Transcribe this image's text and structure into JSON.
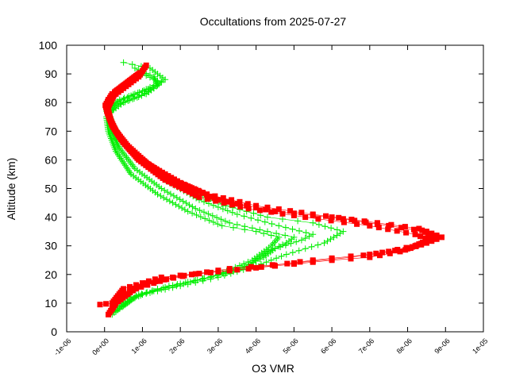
{
  "chart_data": {
    "type": "scatter",
    "title": "Occultations from 2025-07-27",
    "xlabel": "O3 VMR",
    "ylabel": "Altitude (km)",
    "xlim": [
      -1e-06,
      1e-05
    ],
    "ylim": [
      0,
      100
    ],
    "x_tick_labels": [
      "-1e-06",
      "0e+00",
      "1e-06",
      "2e-06",
      "3e-06",
      "4e-06",
      "5e-06",
      "6e-06",
      "7e-06",
      "8e-06",
      "9e-06",
      "1e-05"
    ],
    "x_ticks": [
      -1e-06,
      0,
      1e-06,
      2e-06,
      3e-06,
      4e-06,
      5e-06,
      6e-06,
      7e-06,
      8e-06,
      9e-06,
      1e-05
    ],
    "y_tick_labels": [
      "0",
      "10",
      "20",
      "30",
      "40",
      "50",
      "60",
      "70",
      "80",
      "90",
      "100"
    ],
    "y_ticks": [
      0,
      10,
      20,
      30,
      40,
      50,
      60,
      70,
      80,
      90,
      100
    ],
    "grid": false,
    "legend": "none",
    "series": [
      {
        "marker": "square",
        "color": "#ff0000",
        "profiles": [
          [
            [
              -1.2e-07,
              9.5
            ],
            [
              2e-07,
              10
            ],
            [
              5e-07,
              15
            ],
            [
              1.5e-06,
              19
            ],
            [
              3e-06,
              21
            ],
            [
              4.5e-06,
              23
            ],
            [
              6e-06,
              25
            ],
            [
              7e-06,
              26
            ],
            [
              7.8e-06,
              28
            ],
            [
              8.5e-06,
              31
            ],
            [
              8.9e-06,
              33
            ],
            [
              8.5e-06,
              35
            ],
            [
              7.5e-06,
              37
            ],
            [
              6e-06,
              40
            ],
            [
              4.5e-06,
              42
            ],
            [
              3e-06,
              46
            ],
            [
              2e-06,
              52
            ],
            [
              1.2e-06,
              58
            ],
            [
              7e-07,
              63
            ],
            [
              4e-07,
              68
            ],
            [
              2e-07,
              72
            ],
            [
              6e-08,
              77
            ],
            [
              1e-07,
              81
            ],
            [
              5e-07,
              85
            ],
            [
              9e-07,
              89
            ],
            [
              1.1e-06,
              93
            ]
          ],
          [
            [
              1e-07,
              6
            ],
            [
              3e-07,
              10
            ],
            [
              8e-07,
              15
            ],
            [
              1.8e-06,
              19
            ],
            [
              3.3e-06,
              22
            ],
            [
              5e-06,
              24
            ],
            [
              6.5e-06,
              26
            ],
            [
              7.5e-06,
              28
            ],
            [
              8.2e-06,
              30
            ],
            [
              8.7e-06,
              33
            ],
            [
              8.3e-06,
              36
            ],
            [
              7.2e-06,
              38
            ],
            [
              5.5e-06,
              41
            ],
            [
              4e-06,
              44
            ],
            [
              2.7e-06,
              48
            ],
            [
              1.8e-06,
              53
            ],
            [
              1.1e-06,
              59
            ],
            [
              6e-07,
              65
            ],
            [
              3e-07,
              70
            ],
            [
              1.2e-07,
              75
            ],
            [
              2e-08,
              79
            ],
            [
              2e-07,
              83
            ],
            [
              6e-07,
              87
            ],
            [
              1e-06,
              91
            ]
          ],
          [
            [
              2e-07,
              8
            ],
            [
              4e-07,
              12
            ],
            [
              1.1e-06,
              17
            ],
            [
              2.3e-06,
              20
            ],
            [
              3.8e-06,
              22
            ],
            [
              5.5e-06,
              25
            ],
            [
              7e-06,
              27
            ],
            [
              8e-06,
              29
            ],
            [
              8.6e-06,
              32
            ],
            [
              8.2e-06,
              34
            ],
            [
              7e-06,
              37
            ],
            [
              5.3e-06,
              40
            ],
            [
              3.8e-06,
              43
            ],
            [
              2.5e-06,
              47
            ],
            [
              1.6e-06,
              53
            ],
            [
              9e-07,
              60
            ],
            [
              5e-07,
              66
            ],
            [
              2e-07,
              72
            ],
            [
              8e-08,
              78
            ],
            [
              3e-07,
              84
            ],
            [
              7e-07,
              88
            ],
            [
              9e-07,
              90
            ]
          ]
        ]
      },
      {
        "marker": "plus",
        "color": "#00ee00",
        "profiles": [
          [
            [
              2e-07,
              6
            ],
            [
              5e-07,
              10
            ],
            [
              1e-06,
              13
            ],
            [
              2e-06,
              16
            ],
            [
              3e-06,
              19
            ],
            [
              4e-06,
              23
            ],
            [
              4.8e-06,
              27
            ],
            [
              5.8e-06,
              31
            ],
            [
              6.3e-06,
              35
            ],
            [
              5.5e-06,
              38
            ],
            [
              4.3e-06,
              40
            ],
            [
              3.2e-06,
              44
            ],
            [
              2.2e-06,
              50
            ],
            [
              1.4e-06,
              56
            ],
            [
              8e-07,
              62
            ],
            [
              4e-07,
              68
            ],
            [
              2e-07,
              73
            ],
            [
              1e-07,
              77
            ],
            [
              4e-07,
              81
            ],
            [
              1e-06,
              84
            ],
            [
              1.6e-06,
              88
            ],
            [
              1.2e-06,
              92
            ],
            [
              5e-07,
              94
            ]
          ],
          [
            [
              3e-07,
              7
            ],
            [
              7e-07,
              12
            ],
            [
              1.4e-06,
              15
            ],
            [
              2.4e-06,
              18
            ],
            [
              3.4e-06,
              21
            ],
            [
              4.2e-06,
              26
            ],
            [
              4.5e-06,
              29
            ],
            [
              5.2e-06,
              32
            ],
            [
              5.5e-06,
              34
            ],
            [
              4.6e-06,
              37
            ],
            [
              3.5e-06,
              41
            ],
            [
              2.5e-06,
              46
            ],
            [
              1.6e-06,
              53
            ],
            [
              9e-07,
              60
            ],
            [
              4e-07,
              67
            ],
            [
              2e-07,
              72
            ],
            [
              5e-08,
              77
            ],
            [
              3e-07,
              80
            ],
            [
              8e-07,
              83
            ],
            [
              1.4e-06,
              86
            ],
            [
              1.3e-06,
              89
            ],
            [
              8e-07,
              92
            ]
          ],
          [
            [
              4e-07,
              8
            ],
            [
              8e-07,
              12
            ],
            [
              1.7e-06,
              16
            ],
            [
              2.8e-06,
              19
            ],
            [
              3.8e-06,
              23
            ],
            [
              4.3e-06,
              28
            ],
            [
              4.8e-06,
              31
            ],
            [
              5e-06,
              33
            ],
            [
              4.3e-06,
              35
            ],
            [
              3.3e-06,
              38
            ],
            [
              2.4e-06,
              43
            ],
            [
              1.5e-06,
              50
            ],
            [
              8e-07,
              57
            ],
            [
              4e-07,
              64
            ],
            [
              1.5e-07,
              71
            ],
            [
              1e-07,
              76
            ],
            [
              5e-07,
              80
            ],
            [
              1.1e-06,
              83
            ],
            [
              1.5e-06,
              87
            ],
            [
              1e-06,
              90
            ]
          ],
          [
            [
              5e-07,
              9
            ],
            [
              9e-07,
              13
            ],
            [
              1.9e-06,
              16
            ],
            [
              3e-06,
              20
            ],
            [
              3.9e-06,
              25
            ],
            [
              4.4e-06,
              30
            ],
            [
              4.6e-06,
              33
            ],
            [
              4e-06,
              35
            ],
            [
              3.1e-06,
              37
            ],
            [
              2.2e-06,
              42
            ],
            [
              1.4e-06,
              48
            ],
            [
              7e-07,
              55
            ],
            [
              3e-07,
              63
            ],
            [
              1e-07,
              70
            ],
            [
              5e-08,
              75
            ],
            [
              3e-07,
              79
            ],
            [
              9e-07,
              82
            ],
            [
              1.3e-06,
              85
            ]
          ]
        ]
      }
    ]
  }
}
